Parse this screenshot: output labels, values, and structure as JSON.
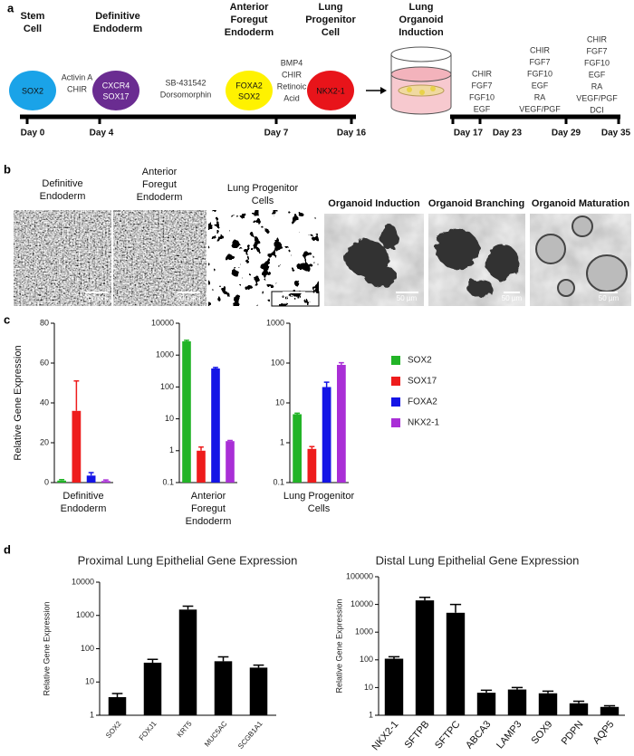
{
  "figure": {
    "panel_labels": [
      "a",
      "b",
      "c",
      "d"
    ],
    "timeline": {
      "stages": [
        {
          "title": [
            "Stem",
            "Cell"
          ],
          "marker": [
            "SOX2"
          ]
        },
        {
          "title": [
            "Definitive",
            "Endoderm"
          ],
          "marker": [
            "CXCR4",
            "SOX17"
          ]
        },
        {
          "title": [
            "Anterior",
            "Foregut",
            "Endoderm"
          ],
          "marker": [
            "FOXA2",
            "SOX2"
          ]
        },
        {
          "title": [
            "Lung",
            "Progenitor",
            "Cell"
          ],
          "marker": [
            "NKX2-1"
          ]
        },
        {
          "title": [
            "Lung",
            "Organoid",
            "Induction"
          ]
        }
      ],
      "treatments": [
        [
          "Activin A",
          "CHIR"
        ],
        [
          "SB-431542",
          "Dorsomorphin"
        ],
        [
          "BMP4",
          "CHIR",
          "Retinoic",
          "Acid"
        ],
        [
          "CHIR",
          "FGF7",
          "FGF10",
          "EGF"
        ],
        [
          "CHIR",
          "FGF7",
          "FGF10",
          "EGF",
          "RA",
          "VEGF/PGF"
        ],
        [
          "CHIR",
          "FGF7",
          "FGF10",
          "EGF",
          "RA",
          "VEGF/PGF",
          "DCI"
        ]
      ],
      "days": [
        "Day 0",
        "Day 4",
        "Day 7",
        "Day 16",
        "Day 17",
        "Day 23",
        "Day 29",
        "Day 35"
      ]
    },
    "micrographs": [
      {
        "title": [
          "Definitive",
          "Endoderm"
        ],
        "scale": "200 µm"
      },
      {
        "title": [
          "Anterior",
          "Foregut",
          "Endoderm"
        ],
        "scale": "200 µm"
      },
      {
        "title": [
          "Lung Progenitor",
          "Cells"
        ],
        "scale": "100 µm"
      },
      {
        "title": [
          "Organoid Induction"
        ],
        "scale": "50 µm"
      },
      {
        "title": [
          "Organoid Branching"
        ],
        "scale": "50 µm"
      },
      {
        "title": [
          "Organoid Maturation"
        ],
        "scale": "50 µm"
      }
    ]
  },
  "chart_data": [
    {
      "type": "bar",
      "log": false,
      "ylabel": "Relative Gene Expression",
      "xlabel": [
        "Definitive",
        "Endoderm"
      ],
      "ylim": [
        0,
        80
      ],
      "yticks": [
        0,
        20,
        40,
        60,
        80
      ],
      "series": [
        {
          "name": "SOX2",
          "color": "#22b427",
          "values": [
            1
          ],
          "errors": [
            0.5
          ]
        },
        {
          "name": "SOX17",
          "color": "#ee1c1c",
          "values": [
            36
          ],
          "errors": [
            15
          ]
        },
        {
          "name": "FOXA2",
          "color": "#1414e6",
          "values": [
            3.5
          ],
          "errors": [
            1.5
          ]
        },
        {
          "name": "NKX2-1",
          "color": "#a92fd6",
          "values": [
            0.8
          ],
          "errors": [
            0.5
          ]
        }
      ]
    },
    {
      "type": "bar",
      "log": true,
      "xlabel": [
        "Anterior",
        "Foregut",
        "Endoderm"
      ],
      "ylim": [
        0.1,
        10000
      ],
      "yticks": [
        0.1,
        1,
        10,
        100,
        1000,
        10000
      ],
      "series": [
        {
          "name": "SOX2",
          "color": "#22b427",
          "values": [
            2700
          ],
          "errors": [
            200
          ]
        },
        {
          "name": "SOX17",
          "color": "#ee1c1c",
          "values": [
            1.0
          ],
          "errors": [
            0.3
          ]
        },
        {
          "name": "FOXA2",
          "color": "#1414e6",
          "values": [
            380
          ],
          "errors": [
            30
          ]
        },
        {
          "name": "NKX2-1",
          "color": "#a92fd6",
          "values": [
            2.0
          ],
          "errors": [
            0.1
          ]
        }
      ]
    },
    {
      "type": "bar",
      "log": true,
      "xlabel": [
        "Lung Progenitor",
        "Cells"
      ],
      "ylim": [
        0.1,
        1000
      ],
      "yticks": [
        0.1,
        1,
        10,
        100,
        1000
      ],
      "series": [
        {
          "name": "SOX2",
          "color": "#22b427",
          "values": [
            5.2
          ],
          "errors": [
            0.3
          ]
        },
        {
          "name": "SOX17",
          "color": "#ee1c1c",
          "values": [
            0.7
          ],
          "errors": [
            0.1
          ]
        },
        {
          "name": "FOXA2",
          "color": "#1414e6",
          "values": [
            25
          ],
          "errors": [
            8
          ]
        },
        {
          "name": "NKX2-1",
          "color": "#a92fd6",
          "values": [
            90
          ],
          "errors": [
            12
          ]
        }
      ]
    },
    {
      "type": "bar",
      "log": true,
      "title": "Proximal Lung Epithelial Gene Expression",
      "ylabel": "Relative Gene Expression",
      "categories": [
        "SOX2",
        "FOXJ1",
        "KRT5",
        "MUC5AC",
        "SCGB1A1"
      ],
      "ylim": [
        1,
        10000
      ],
      "yticks": [
        1,
        10,
        100,
        1000,
        10000
      ],
      "series": [
        {
          "color": "#000000",
          "values": [
            3.5,
            38,
            1500,
            42,
            27
          ],
          "errors": [
            1,
            10,
            400,
            15,
            5
          ]
        }
      ]
    },
    {
      "type": "bar",
      "log": true,
      "title": "Distal Lung Epithelial Gene Expression",
      "ylabel": "Relative Gene Expression",
      "categories": [
        "NKX2-1",
        "SFTPB",
        "SFTPC",
        "ABCA3",
        "LAMP3",
        "SOX9",
        "PDPN",
        "AQP5"
      ],
      "ylim": [
        1,
        100000
      ],
      "yticks": [
        1,
        10,
        100,
        1000,
        10000,
        100000
      ],
      "series": [
        {
          "color": "#000000",
          "values": [
            110,
            14000,
            5000,
            6.5,
            8.5,
            6.2,
            2.7,
            2.0
          ],
          "errors": [
            20,
            4000,
            5000,
            1.5,
            1.5,
            1.2,
            0.5,
            0.2
          ]
        }
      ]
    }
  ]
}
